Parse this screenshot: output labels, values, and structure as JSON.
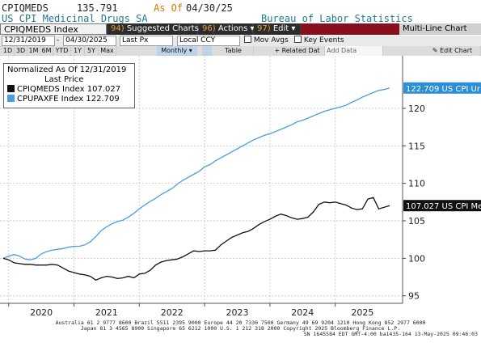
{
  "header": {
    "ticker": "CPIQMEDS",
    "price": "135.791",
    "asof_label": "As Of",
    "asof_date": "04/30/25",
    "description": "US CPI Medicinal Drugs SA",
    "source": "Bureau of Labor Statistics"
  },
  "menubar": {
    "security": "CPIQMEDS Index",
    "suggested_num": "94)",
    "suggested": "Suggested Charts",
    "actions_num": "96)",
    "actions": "Actions",
    "edit_num": "97)",
    "edit": "Edit",
    "title": "Multi-Line Chart"
  },
  "toolbar": {
    "start_date": "12/31/2019",
    "end_date": "04/30/2025",
    "price_type": "Last Px",
    "currency": "Local CCY",
    "mov_avgs": "Mov Avgs",
    "key_events": "Key Events"
  },
  "timebar": {
    "periods": [
      "1D",
      "3D",
      "1M",
      "6M",
      "YTD",
      "1Y",
      "5Y",
      "Max"
    ],
    "frequency": "Monthly",
    "table": "Table",
    "related": "Related Dat",
    "add_data": "Add Data",
    "edit_chart": "Edit Chart"
  },
  "legend": {
    "line1": "Normalized As Of 12/31/2019",
    "line2": "Last Price",
    "items": [
      {
        "label": "CPIQMEDS Index 107.027",
        "color": "#111111"
      },
      {
        "label": "CPUPAXFE Index 122.709",
        "color": "#4a9ee0"
      }
    ]
  },
  "last_labels": {
    "blue": "122.709 US CPI Ur",
    "black": "107.027 US CPI Me"
  },
  "footer": {
    "line1": "Australia 61 2 9777 8600 Brazil 5511 2395 9000 Europe 44 20 7330 7500 Germany 49 69 9204 1210 Hong Kong 852 2977 6000",
    "line2": "Japan 81 3 4565 8900        Singapore 65 6212 1000        U.S. 1 212 318 2000                Copyright 2025 Bloomberg Finance L.P.",
    "line3": "SN 1645584 EDT  GMT-4:00 ba1435-164 13-May-2025 09:46:03"
  },
  "chart_data": {
    "type": "line",
    "x_start": "2019-12",
    "x_labels": [
      "2020",
      "2021",
      "2022",
      "2023",
      "2024",
      "2025"
    ],
    "y_ticks": [
      95,
      100,
      105,
      110,
      115,
      120
    ],
    "ylim": [
      94,
      127
    ],
    "grid": true,
    "legend_position": "top-left",
    "series": [
      {
        "name": "CPUPAXFE Index",
        "color": "#4a9ee0",
        "values": [
          100.0,
          100.3,
          100.5,
          100.3,
          99.9,
          99.8,
          100.0,
          100.6,
          100.9,
          101.1,
          101.2,
          101.3,
          101.5,
          101.6,
          101.6,
          101.8,
          102.2,
          102.9,
          103.7,
          104.2,
          104.6,
          104.9,
          105.1,
          105.5,
          106.0,
          106.6,
          107.1,
          107.6,
          108.0,
          108.5,
          108.9,
          109.3,
          109.9,
          110.4,
          110.8,
          111.2,
          111.6,
          112.2,
          112.5,
          113.0,
          113.4,
          113.8,
          114.2,
          114.6,
          115.0,
          115.4,
          115.8,
          116.1,
          116.4,
          116.6,
          116.9,
          117.2,
          117.5,
          117.8,
          118.2,
          118.4,
          118.7,
          119.0,
          119.3,
          119.6,
          119.8,
          120.0,
          120.2,
          120.4,
          120.8,
          121.1,
          121.5,
          121.8,
          122.1,
          122.4,
          122.5,
          122.709
        ]
      },
      {
        "name": "CPIQMEDS Index",
        "color": "#111111",
        "values": [
          100.0,
          99.8,
          99.4,
          99.3,
          99.2,
          99.2,
          99.1,
          99.1,
          99.1,
          99.2,
          99.1,
          98.7,
          98.3,
          98.1,
          97.9,
          97.8,
          97.6,
          97.1,
          97.4,
          97.6,
          97.5,
          97.3,
          97.4,
          97.6,
          97.4,
          97.9,
          98.0,
          98.4,
          99.1,
          99.5,
          99.7,
          99.8,
          99.9,
          100.2,
          100.6,
          101.0,
          100.9,
          101.0,
          101.0,
          101.1,
          101.8,
          102.3,
          102.8,
          103.1,
          103.4,
          103.6,
          104.0,
          104.5,
          104.9,
          105.2,
          105.6,
          105.9,
          105.7,
          105.4,
          105.2,
          105.3,
          105.5,
          106.2,
          107.2,
          107.5,
          107.4,
          107.5,
          107.3,
          107.1,
          106.7,
          106.5,
          106.6,
          107.9,
          108.1,
          106.6,
          106.8,
          107.027
        ]
      }
    ]
  }
}
